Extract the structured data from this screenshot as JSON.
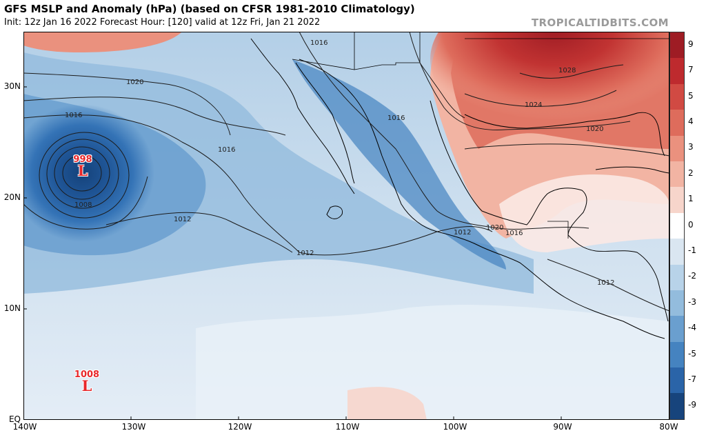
{
  "header": {
    "title": "GFS MSLP and Anomaly (hPa) (based on CFSR 1981-2010 Climatology)",
    "subtitle": "Init: 12z Jan 16 2022   Forecast Hour: [120]   valid at 12z Fri, Jan 21 2022",
    "watermark": "TROPICALTIDBITS.COM"
  },
  "axes": {
    "lat_labels": [
      "30N",
      "20N",
      "10N",
      "EQ"
    ],
    "lon_labels": [
      "140W",
      "130W",
      "120W",
      "110W",
      "100W",
      "90W",
      "80W"
    ]
  },
  "colorbar": {
    "labels": [
      "9",
      "7",
      "5",
      "4",
      "3",
      "2",
      "1",
      "0",
      "-1",
      "-2",
      "-3",
      "-4",
      "-5",
      "-7",
      "-9"
    ],
    "colors": [
      "#9e1c24",
      "#be2a2e",
      "#d14a43",
      "#de6c5c",
      "#ea917e",
      "#f2b4a3",
      "#f7d5cb",
      "#ffffff",
      "#dae6f1",
      "#b8d3e9",
      "#93bcdd",
      "#6a9fcf",
      "#4583c0",
      "#2a64a8",
      "#17447c"
    ]
  },
  "isobars": [
    "1008",
    "1012",
    "1012",
    "1012",
    "1012",
    "1016",
    "1016",
    "1016",
    "1016",
    "1016",
    "1020",
    "1020",
    "1020",
    "1024",
    "1028"
  ],
  "lows": [
    {
      "value": "998",
      "symbol": "L"
    },
    {
      "value": "1008",
      "symbol": "L"
    }
  ]
}
